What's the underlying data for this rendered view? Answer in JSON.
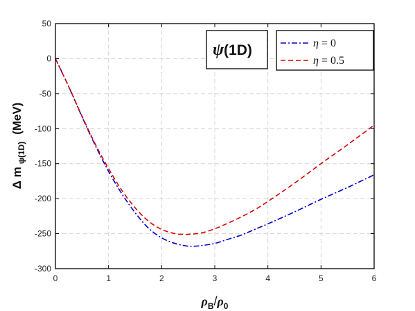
{
  "chart_data": {
    "type": "line",
    "xlabel": {
      "main": "ρ",
      "sub": "B",
      "slash": "/",
      "main2": "ρ",
      "sub2": "0"
    },
    "ylabel": {
      "main": "Δ  m",
      "sub": "ψ(1D)",
      "unit": "(MeV)"
    },
    "xlim": [
      0,
      6
    ],
    "ylim": [
      -300,
      50
    ],
    "xticks": [
      0,
      1,
      2,
      3,
      4,
      5,
      6
    ],
    "yticks": [
      50,
      0,
      -50,
      -100,
      -150,
      -200,
      -250,
      -300
    ],
    "grid": true,
    "annotation": {
      "psi": "ψ",
      "label": "(1D)"
    },
    "legend_position": "top-right",
    "series": [
      {
        "name": "η = 0",
        "name_symbol": "η",
        "name_rest": " = 0",
        "color": "#0000cc",
        "style": "dash-dot",
        "x": [
          0,
          0.25,
          0.5,
          0.75,
          1.0,
          1.25,
          1.5,
          1.75,
          2.0,
          2.25,
          2.5,
          2.6,
          2.75,
          3.0,
          3.25,
          3.5,
          3.75,
          4.0,
          4.5,
          5.0,
          5.5,
          6.0
        ],
        "y": [
          0,
          -40,
          -83,
          -124,
          -161,
          -193,
          -220,
          -242,
          -256,
          -264,
          -268,
          -268,
          -267,
          -264,
          -258,
          -252,
          -244,
          -236,
          -219,
          -201,
          -184,
          -166
        ]
      },
      {
        "name": "η = 0.5",
        "name_symbol": "η",
        "name_rest": " = 0.5",
        "color": "#dd0000",
        "style": "dashed",
        "x": [
          0,
          0.25,
          0.5,
          0.75,
          1.0,
          1.25,
          1.5,
          1.75,
          2.0,
          2.25,
          2.4,
          2.5,
          2.75,
          3.0,
          3.25,
          3.5,
          3.75,
          4.0,
          4.5,
          5.0,
          5.5,
          6.0
        ],
        "y": [
          0,
          -40,
          -82,
          -122,
          -157,
          -188,
          -213,
          -232,
          -244,
          -250,
          -251,
          -251,
          -249,
          -243,
          -235,
          -226,
          -216,
          -204,
          -178,
          -150,
          -123,
          -95
        ]
      }
    ]
  }
}
